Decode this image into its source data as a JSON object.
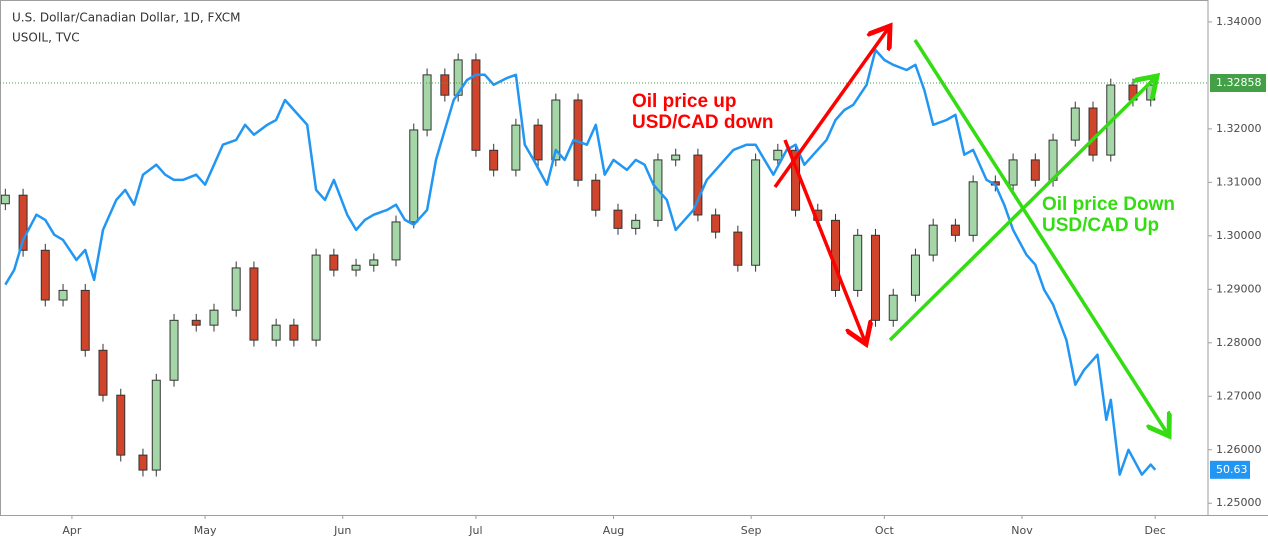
{
  "chart_data": {
    "type": "candlestick",
    "title": "U.S. Dollar/Canadian Dollar, 1D, FXCM",
    "xlim": [
      14.8,
      286.9
    ],
    "xticks": [
      {
        "value": 31,
        "label": "Apr"
      },
      {
        "value": 61,
        "label": "May"
      },
      {
        "value": 92,
        "label": "Jun"
      },
      {
        "value": 122,
        "label": "Jul"
      },
      {
        "value": 153,
        "label": "Aug"
      },
      {
        "value": 184,
        "label": "Sep"
      },
      {
        "value": 214,
        "label": "Oct"
      },
      {
        "value": 245,
        "label": "Nov"
      },
      {
        "value": 275,
        "label": "Dec"
      }
    ],
    "ylim": [
      1.2478,
      1.3441
    ],
    "yticks": [
      {
        "value": 1.34,
        "label": "1.34000"
      },
      {
        "value": 1.32,
        "label": "1.32000"
      },
      {
        "value": 1.31,
        "label": "1.31000"
      },
      {
        "value": 1.3,
        "label": "1.30000"
      },
      {
        "value": 1.29,
        "label": "1.29000"
      },
      {
        "value": 1.28,
        "label": "1.28000"
      },
      {
        "value": 1.27,
        "label": "1.27000"
      },
      {
        "value": 1.26,
        "label": "1.26000"
      },
      {
        "value": 1.25,
        "label": "1.25000"
      }
    ],
    "y2lim": [
      49.5,
      62.38
    ],
    "up_color": "#a5d6a7",
    "down_color": "#d0442c",
    "last_price": 1.32858,
    "last_price_color": "#43a047",
    "x": [
      16,
      20,
      25,
      29,
      34,
      38,
      42,
      47,
      50,
      54,
      59,
      63,
      68,
      72,
      77,
      81,
      86,
      90,
      95,
      99,
      104,
      108,
      111,
      115,
      118,
      122,
      126,
      131,
      136,
      140,
      145,
      149,
      154,
      158,
      163,
      167,
      172,
      176,
      181,
      185,
      190,
      194,
      199,
      203,
      208,
      212,
      216,
      221,
      225,
      230,
      234,
      239,
      243,
      248,
      252,
      257,
      261,
      265,
      270,
      274
    ],
    "open": [
      1.306,
      1.3076,
      1.2973,
      1.288,
      1.2898,
      1.2786,
      1.2702,
      1.259,
      1.2562,
      1.273,
      1.2842,
      1.2833,
      1.2861,
      1.294,
      1.2805,
      1.2833,
      1.2805,
      1.2964,
      1.2936,
      1.2945,
      1.2955,
      1.3026,
      1.3198,
      1.3301,
      1.3263,
      1.3329,
      1.316,
      1.3123,
      1.3207,
      1.3142,
      1.3254,
      1.3104,
      1.3048,
      1.3014,
      1.3029,
      1.3142,
      1.3151,
      1.3039,
      1.3007,
      1.2945,
      1.3142,
      1.316,
      1.3048,
      1.3029,
      1.2898,
      1.3001,
      1.2842,
      1.2889,
      1.2964,
      1.302,
      1.3001,
      1.3101,
      1.3095,
      1.3142,
      1.3104,
      1.3179,
      1.3239,
      1.3151,
      1.3282,
      1.3254
    ],
    "high": [
      1.3088,
      1.3088,
      1.2985,
      1.291,
      1.291,
      1.2798,
      1.2714,
      1.2602,
      1.2742,
      1.2854,
      1.2854,
      1.2873,
      1.2952,
      1.2952,
      1.2845,
      1.2845,
      1.2976,
      1.2976,
      1.2957,
      1.2967,
      1.3038,
      1.321,
      1.3313,
      1.3313,
      1.3341,
      1.3341,
      1.3172,
      1.3219,
      1.3219,
      1.3266,
      1.3266,
      1.3116,
      1.306,
      1.3041,
      1.3154,
      1.3163,
      1.3163,
      1.3051,
      1.3019,
      1.3154,
      1.3172,
      1.3172,
      1.306,
      1.3041,
      1.3013,
      1.3013,
      1.2901,
      1.2976,
      1.3032,
      1.3032,
      1.3113,
      1.3113,
      1.3154,
      1.3154,
      1.3191,
      1.3251,
      1.3251,
      1.3294,
      1.3294,
      1.3294
    ],
    "low": [
      1.3048,
      1.2961,
      1.2868,
      1.2868,
      1.2774,
      1.269,
      1.2578,
      1.255,
      1.255,
      1.2718,
      1.2821,
      1.2821,
      1.2849,
      1.2793,
      1.2793,
      1.2793,
      1.2793,
      1.2924,
      1.2924,
      1.2933,
      1.2943,
      1.3014,
      1.3186,
      1.3251,
      1.3251,
      1.3148,
      1.3111,
      1.3111,
      1.313,
      1.313,
      1.3092,
      1.3036,
      1.3002,
      1.3002,
      1.3017,
      1.313,
      1.3027,
      1.2995,
      1.2933,
      1.2933,
      1.313,
      1.3036,
      1.3017,
      1.2886,
      1.2886,
      1.283,
      1.283,
      1.2877,
      1.2952,
      1.2989,
      1.2989,
      1.3083,
      1.3083,
      1.3092,
      1.3092,
      1.3167,
      1.3139,
      1.3139,
      1.3242,
      1.3242
    ],
    "close": [
      1.3076,
      1.2973,
      1.288,
      1.2898,
      1.2786,
      1.2702,
      1.259,
      1.2562,
      1.273,
      1.2842,
      1.2833,
      1.2861,
      1.294,
      1.2805,
      1.2833,
      1.2805,
      1.2964,
      1.2936,
      1.2945,
      1.2955,
      1.3026,
      1.3198,
      1.3301,
      1.3263,
      1.3329,
      1.316,
      1.3123,
      1.3207,
      1.3142,
      1.3254,
      1.3104,
      1.3048,
      1.3014,
      1.3029,
      1.3142,
      1.3151,
      1.3039,
      1.3007,
      1.2945,
      1.3142,
      1.316,
      1.3048,
      1.3029,
      1.2898,
      1.3001,
      1.2842,
      1.2889,
      1.2964,
      1.302,
      1.3001,
      1.3101,
      1.3095,
      1.3142,
      1.3104,
      1.3179,
      1.3239,
      1.3151,
      1.3282,
      1.3254,
      1.3282
    ],
    "lines": [
      {
        "name": "USOIL, TVC",
        "color": "#2196f3",
        "axis": "y2",
        "x": [
          16,
          18,
          20,
          23,
          25,
          27,
          29,
          32,
          34,
          36,
          38,
          41,
          43,
          45,
          47,
          50,
          52,
          54,
          56,
          59,
          61,
          63,
          65,
          68,
          70,
          72,
          75,
          77,
          79,
          81,
          84,
          86,
          88,
          90,
          93,
          95,
          97,
          99,
          102,
          104,
          106,
          108,
          111,
          113,
          115,
          117,
          120,
          122,
          124,
          126,
          129,
          131,
          133,
          135,
          138,
          140,
          142,
          144,
          147,
          149,
          151,
          153,
          156,
          158,
          160,
          162,
          165,
          167,
          169,
          171,
          174,
          176,
          178,
          180,
          183,
          185,
          187,
          189,
          192,
          194,
          196,
          198,
          201,
          203,
          205,
          207,
          210,
          212,
          214,
          216,
          219,
          221,
          223,
          225,
          228,
          230,
          232,
          234,
          237,
          239,
          241,
          243,
          246,
          248,
          250,
          252,
          255,
          257,
          259,
          262,
          264,
          265,
          267,
          269,
          272,
          274,
          275
        ],
        "values": [
          55.26,
          55.63,
          56.38,
          57.01,
          56.88,
          56.51,
          56.38,
          55.88,
          56.13,
          55.38,
          56.63,
          57.38,
          57.63,
          57.26,
          58.01,
          58.26,
          58.01,
          57.88,
          57.88,
          58.01,
          57.76,
          58.26,
          58.76,
          58.88,
          59.26,
          59.01,
          59.26,
          59.38,
          59.88,
          59.63,
          59.26,
          57.63,
          57.38,
          57.88,
          57.01,
          56.63,
          56.88,
          57.01,
          57.13,
          57.26,
          56.88,
          56.76,
          57.13,
          58.38,
          59.13,
          59.88,
          60.38,
          60.51,
          60.51,
          60.26,
          60.43,
          60.51,
          58.76,
          58.38,
          57.76,
          58.63,
          58.38,
          58.88,
          58.76,
          59.26,
          58.01,
          58.38,
          58.13,
          58.38,
          58.26,
          57.76,
          57.38,
          56.63,
          56.88,
          57.13,
          57.88,
          58.13,
          58.38,
          58.63,
          58.76,
          58.76,
          58.38,
          58.01,
          58.63,
          58.76,
          58.26,
          58.51,
          58.88,
          59.38,
          59.63,
          59.76,
          60.26,
          61.13,
          60.88,
          60.76,
          60.63,
          60.76,
          60.13,
          59.26,
          59.38,
          59.51,
          58.51,
          58.63,
          57.88,
          57.76,
          57.26,
          56.63,
          56.01,
          55.76,
          55.13,
          54.76,
          53.88,
          52.76,
          53.13,
          53.51,
          51.88,
          52.38,
          50.51,
          51.13,
          50.51,
          50.76,
          50.63
        ]
      }
    ],
    "annotations": [
      {
        "lines": [
          "Oil price up",
          "USD/CAD down"
        ],
        "color": "#ff0000"
      },
      {
        "lines": [
          "Oil price Down",
          "USD/CAD Up"
        ],
        "color": "#33dd11"
      }
    ]
  }
}
